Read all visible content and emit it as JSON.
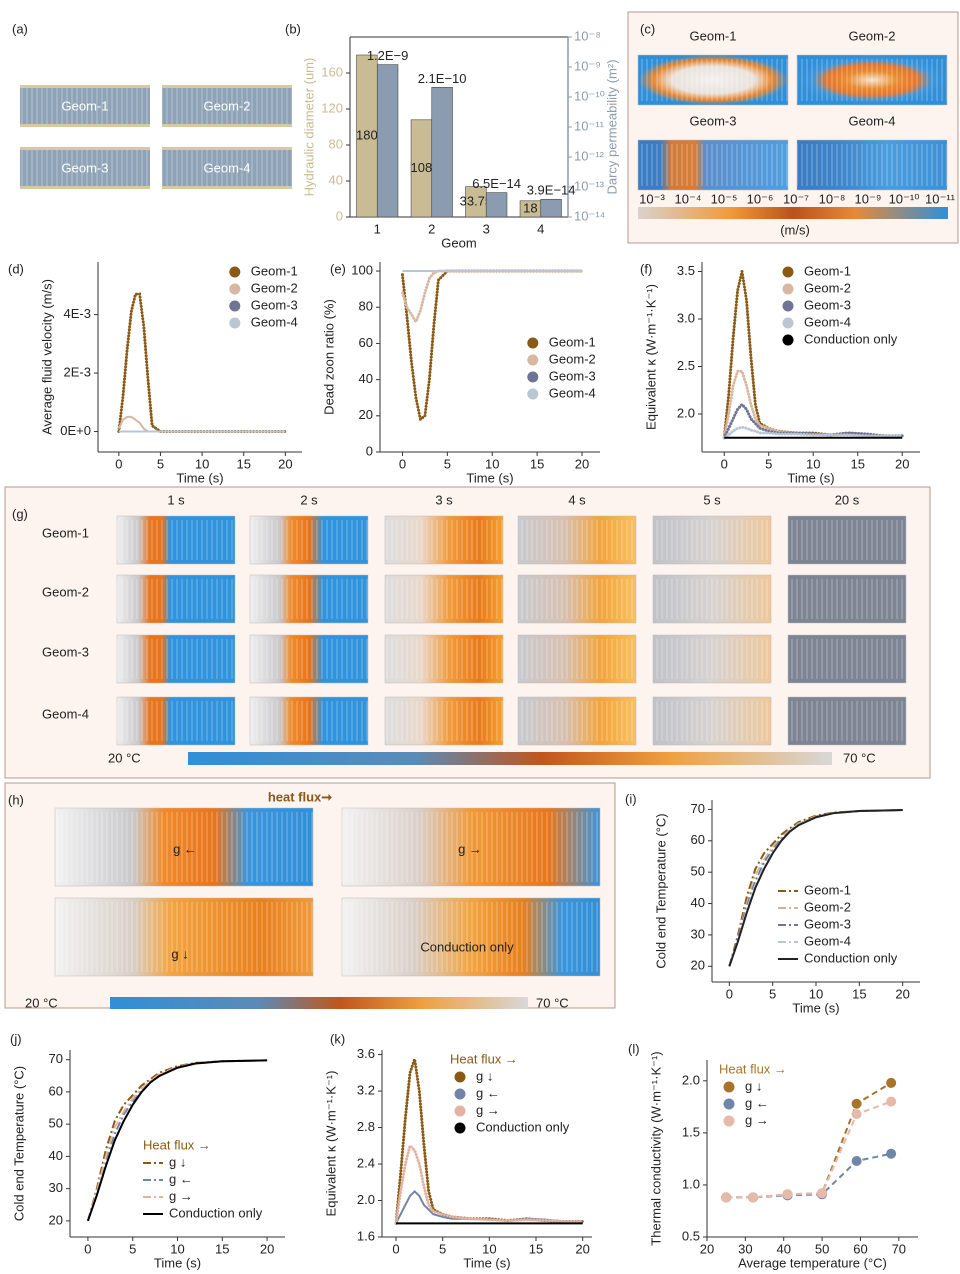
{
  "chart_data": [
    {
      "type": "bar",
      "label": "(b)",
      "categories": [
        "1",
        "2",
        "3",
        "4"
      ],
      "xlabel": "Geom",
      "ylabel": "Hydraulic diameter (um)",
      "y2label": "Darcy permeability (m²)",
      "ylim": [
        0,
        200
      ],
      "yticks": [
        0,
        40,
        80,
        120,
        160
      ],
      "y2lim": [
        1e-14,
        1e-08
      ],
      "y2log": true,
      "y2ticks": [
        {
          "value": 1e-14,
          "label": "10⁻¹⁴"
        },
        {
          "value": 1e-13,
          "label": "10⁻¹³"
        },
        {
          "value": 1e-12,
          "label": "10⁻¹²"
        },
        {
          "value": 1e-11,
          "label": "10⁻¹¹"
        },
        {
          "value": 1e-10,
          "label": "10⁻¹⁰"
        },
        {
          "value": 1e-09,
          "label": "10⁻⁹"
        },
        {
          "value": 1e-08,
          "label": "10⁻⁸"
        }
      ],
      "series": [
        {
          "name": "Hydraulic diameter",
          "color": "#c9bb94",
          "values": [
            180,
            108,
            33.75,
            18
          ]
        },
        {
          "name": "Darcy permeability",
          "color": "#8c9cb0",
          "axis": "y2",
          "values": [
            1.2e-09,
            2.1e-10,
            6.5e-14,
            3.9e-14
          ],
          "value_labels": [
            "1.2E−9",
            "2.1E−10",
            "6.5E−14",
            "3.9E−14"
          ]
        }
      ]
    },
    {
      "type": "line",
      "label": "(d)",
      "xlabel": "Time (s)",
      "ylabel": "Average fluid velocity (m/s)",
      "legend": "upper right",
      "legend_marker": "dot",
      "x": [
        0,
        0.5,
        1,
        1.5,
        2,
        2.5,
        3,
        3.5,
        4,
        5,
        6,
        8,
        10,
        12,
        14,
        16,
        18,
        20
      ],
      "xlim": [
        -2.5,
        22
      ],
      "xticks": [
        0,
        5,
        10,
        15,
        20
      ],
      "ylim": [
        -0.0007,
        0.0058
      ],
      "yticks": [
        {
          "value": 0,
          "label": "0E+0"
        },
        {
          "value": 0.002,
          "label": "2E-3"
        },
        {
          "value": 0.004,
          "label": "4E-3"
        }
      ],
      "series": [
        {
          "name": "Geom-1",
          "color": "#8a5a14",
          "style": "dotted",
          "values": [
            0,
            0.0012,
            0.0028,
            0.0041,
            0.0047,
            0.0047,
            0.0036,
            0.0018,
            0.0002,
            0,
            0,
            0,
            0,
            0,
            0,
            0,
            0,
            0
          ]
        },
        {
          "name": "Geom-2",
          "color": "#d8b8a2",
          "style": "solid",
          "values": [
            0.0001,
            0.0004,
            0.0005,
            0.0005,
            0.0004,
            0.0003,
            0.0001,
            0,
            0,
            0,
            0,
            0,
            0,
            0,
            0,
            0,
            0,
            0
          ]
        },
        {
          "name": "Geom-3",
          "color": "#6f7394",
          "style": "solid",
          "values": [
            0,
            0,
            0,
            0,
            0,
            0,
            0,
            0,
            0,
            0,
            0,
            0,
            0,
            0,
            0,
            0,
            0,
            0
          ]
        },
        {
          "name": "Geom-4",
          "color": "#b9c7d3",
          "style": "solid",
          "values": [
            0,
            0,
            0,
            0,
            0,
            0,
            0,
            0,
            0,
            0,
            0,
            0,
            0,
            0,
            0,
            0,
            0,
            0
          ]
        }
      ]
    },
    {
      "type": "line",
      "label": "(e)",
      "xlabel": "Time (s)",
      "ylabel": "Dead zoon ratio (%)",
      "legend": "center right",
      "legend_marker": "dot",
      "x": [
        0,
        0.5,
        1,
        1.5,
        2,
        2.5,
        3,
        3.5,
        4,
        5,
        6,
        8,
        10,
        12,
        14,
        16,
        18,
        20
      ],
      "xlim": [
        -2.5,
        22
      ],
      "xticks": [
        0,
        5,
        10,
        15,
        20
      ],
      "ylim": [
        0,
        105
      ],
      "yticks": [
        0,
        20,
        40,
        60,
        80,
        100
      ],
      "series": [
        {
          "name": "Geom-1",
          "color": "#8a5a14",
          "style": "dotted",
          "values": [
            98,
            75,
            50,
            30,
            18,
            20,
            40,
            70,
            95,
            100,
            100,
            100,
            100,
            100,
            100,
            100,
            100,
            100
          ]
        },
        {
          "name": "Geom-2",
          "color": "#d8b8a2",
          "style": "dotted",
          "values": [
            88,
            80,
            76,
            72,
            78,
            88,
            96,
            99,
            100,
            100,
            100,
            100,
            100,
            100,
            100,
            100,
            100,
            100
          ]
        },
        {
          "name": "Geom-3",
          "color": "#6f7394",
          "style": "solid",
          "values": [
            100,
            100,
            100,
            100,
            100,
            100,
            100,
            100,
            100,
            100,
            100,
            100,
            100,
            100,
            100,
            100,
            100,
            100
          ]
        },
        {
          "name": "Geom-4",
          "color": "#b9c7d3",
          "style": "solid",
          "values": [
            100,
            100,
            100,
            100,
            100,
            100,
            100,
            100,
            100,
            100,
            100,
            100,
            100,
            100,
            100,
            100,
            100,
            100
          ]
        }
      ]
    },
    {
      "type": "line",
      "label": "(f)",
      "xlabel": "Time (s)",
      "ylabel": "Equivalent κ (W·m⁻¹·K⁻¹)",
      "legend": "upper right",
      "legend_marker": "dot",
      "x": [
        0,
        0.5,
        1,
        1.5,
        2,
        2.5,
        3,
        3.5,
        4,
        5,
        6,
        8,
        10,
        12,
        14,
        16,
        18,
        20
      ],
      "xlim": [
        -2.5,
        22
      ],
      "xticks": [
        0,
        5,
        10,
        15,
        20
      ],
      "ylim": [
        1.6,
        3.6
      ],
      "yticks": [
        {
          "value": 2,
          "label": "2.0"
        },
        2.5,
        {
          "value": 3,
          "label": "3.0"
        },
        3.5
      ],
      "series": [
        {
          "name": "Geom-1",
          "color": "#8a5a14",
          "style": "dotted",
          "values": [
            1.75,
            2.2,
            2.8,
            3.3,
            3.5,
            3.2,
            2.6,
            2.1,
            1.9,
            1.85,
            1.82,
            1.8,
            1.8,
            1.78,
            1.8,
            1.78,
            1.77,
            1.77
          ]
        },
        {
          "name": "Geom-2",
          "color": "#d8b8a2",
          "style": "dotted",
          "values": [
            1.75,
            2.0,
            2.3,
            2.45,
            2.45,
            2.3,
            2.1,
            1.95,
            1.88,
            1.85,
            1.82,
            1.8,
            1.79,
            1.78,
            1.79,
            1.78,
            1.77,
            1.77
          ]
        },
        {
          "name": "Geom-3",
          "color": "#6f7394",
          "style": "dotted",
          "values": [
            1.75,
            1.85,
            1.95,
            2.05,
            2.1,
            2.05,
            1.95,
            1.9,
            1.85,
            1.82,
            1.8,
            1.8,
            1.79,
            1.78,
            1.8,
            1.79,
            1.77,
            1.77
          ]
        },
        {
          "name": "Geom-4",
          "color": "#b9c7d3",
          "style": "dotted",
          "values": [
            1.75,
            1.78,
            1.82,
            1.85,
            1.86,
            1.85,
            1.83,
            1.82,
            1.8,
            1.8,
            1.79,
            1.79,
            1.78,
            1.78,
            1.78,
            1.77,
            1.77,
            1.77
          ]
        },
        {
          "name": "Conduction only",
          "color": "#000000",
          "style": "solid",
          "values": [
            1.75,
            1.75,
            1.75,
            1.75,
            1.75,
            1.75,
            1.75,
            1.75,
            1.75,
            1.75,
            1.75,
            1.75,
            1.75,
            1.75,
            1.75,
            1.75,
            1.75,
            1.75
          ]
        }
      ]
    },
    {
      "type": "line",
      "label": "(i)",
      "xlabel": "Time (s)",
      "ylabel": "Cold end Temperature (°C)",
      "legend": "lower right",
      "legend_marker": "line",
      "x": [
        0,
        1,
        2,
        3,
        4,
        5,
        6,
        7,
        8,
        10,
        12,
        15,
        20
      ],
      "xlim": [
        -2,
        22
      ],
      "xticks": [
        0,
        5,
        10,
        15,
        20
      ],
      "ylim": [
        15,
        73
      ],
      "yticks": [
        20,
        30,
        40,
        50,
        60,
        70
      ],
      "series": [
        {
          "name": "Geom-1",
          "color": "#8a5a14",
          "style": "dashdot",
          "values": [
            20,
            30,
            42,
            51,
            56,
            59,
            62,
            64,
            66,
            68,
            69,
            69.5,
            69.8
          ]
        },
        {
          "name": "Geom-2",
          "color": "#c9b89a",
          "style": "dashdot",
          "values": [
            20,
            29,
            40,
            49,
            54,
            58,
            61,
            63.5,
            65.5,
            67.8,
            68.9,
            69.5,
            69.8
          ]
        },
        {
          "name": "Geom-3",
          "color": "#6f7394",
          "style": "dashdot",
          "values": [
            20,
            29,
            39,
            47,
            53,
            57,
            60.5,
            63,
            65,
            67.6,
            68.8,
            69.5,
            69.8
          ]
        },
        {
          "name": "Geom-4",
          "color": "#b9c7d3",
          "style": "dashdot",
          "values": [
            20,
            28,
            38,
            46,
            52,
            56.5,
            60,
            63,
            65,
            67.5,
            68.8,
            69.5,
            69.8
          ]
        },
        {
          "name": "Conduction only",
          "color": "#222222",
          "style": "solid",
          "values": [
            20,
            28,
            37,
            45,
            51,
            56,
            60,
            63,
            65,
            67.5,
            68.8,
            69.5,
            69.8
          ]
        }
      ]
    },
    {
      "type": "line",
      "label": "(j)",
      "xlabel": "Time (s)",
      "ylabel": "Cold end Temperature (°C)",
      "legend": "lower right",
      "legend_marker": "line",
      "legend_title": "Heat flux →",
      "x": [
        0,
        1,
        2,
        3,
        4,
        5,
        6,
        7,
        8,
        10,
        12,
        15,
        20
      ],
      "xlim": [
        -2,
        22
      ],
      "xticks": [
        0,
        5,
        10,
        15,
        20
      ],
      "ylim": [
        15,
        73
      ],
      "yticks": [
        20,
        30,
        40,
        50,
        60,
        70
      ],
      "series": [
        {
          "name": "g ↓",
          "color": "#8a5a14",
          "style": "dashdot",
          "values": [
            20,
            30,
            42,
            51,
            56,
            59,
            62,
            64,
            66,
            68,
            69,
            69.5,
            69.8
          ]
        },
        {
          "name": "g ←",
          "color": "#6f86a8",
          "style": "dashdot",
          "values": [
            20,
            29,
            39,
            47,
            53,
            57,
            60.5,
            63,
            65,
            67.6,
            68.8,
            69.5,
            69.8
          ]
        },
        {
          "name": "g →",
          "color": "#e2b3a3",
          "style": "dashdot",
          "values": [
            20,
            29,
            40,
            49,
            54,
            58,
            61,
            63.5,
            65.5,
            67.8,
            68.9,
            69.5,
            69.8
          ]
        },
        {
          "name": "Conduction only",
          "color": "#000000",
          "style": "solid",
          "values": [
            20,
            28,
            37,
            45,
            51,
            56,
            60,
            63,
            65,
            67.5,
            68.8,
            69.5,
            69.8
          ]
        }
      ]
    },
    {
      "type": "line",
      "label": "(k)",
      "xlabel": "Time (s)",
      "ylabel": "Equivalent κ (W·m⁻¹·K⁻¹)",
      "legend": "upper right",
      "legend_marker": "dot",
      "legend_title": "Heat flux →",
      "x": [
        0,
        0.5,
        1,
        1.5,
        2,
        2.5,
        3,
        3.5,
        4,
        5,
        6,
        8,
        10,
        12,
        14,
        16,
        18,
        20
      ],
      "xlim": [
        -1.5,
        21
      ],
      "xticks": [
        0,
        5,
        10,
        15,
        20
      ],
      "ylim": [
        1.6,
        3.65
      ],
      "yticks": [
        1.6,
        {
          "value": 2,
          "label": "2.0"
        },
        2.4,
        2.8,
        3.2,
        3.6
      ],
      "series": [
        {
          "name": "g ↓",
          "color": "#8a5a14",
          "style": "dotted",
          "values": [
            1.75,
            2.3,
            2.9,
            3.4,
            3.55,
            3.2,
            2.6,
            2.1,
            1.9,
            1.85,
            1.82,
            1.8,
            1.8,
            1.78,
            1.8,
            1.78,
            1.77,
            1.77
          ]
        },
        {
          "name": "g ←",
          "color": "#6f86a8",
          "style": "solid",
          "values": [
            1.75,
            1.85,
            1.95,
            2.05,
            2.1,
            2.05,
            1.95,
            1.9,
            1.85,
            1.82,
            1.8,
            1.8,
            1.79,
            1.78,
            1.8,
            1.79,
            1.77,
            1.77
          ]
        },
        {
          "name": "g →",
          "color": "#e2b3a3",
          "style": "dotted",
          "values": [
            1.75,
            2.1,
            2.4,
            2.6,
            2.55,
            2.4,
            2.15,
            1.95,
            1.88,
            1.85,
            1.82,
            1.8,
            1.79,
            1.78,
            1.79,
            1.78,
            1.77,
            1.77
          ]
        },
        {
          "name": "Conduction only",
          "color": "#000000",
          "style": "solid",
          "values": [
            1.75,
            1.75,
            1.75,
            1.75,
            1.75,
            1.75,
            1.75,
            1.75,
            1.75,
            1.75,
            1.75,
            1.75,
            1.75,
            1.75,
            1.75,
            1.75,
            1.75,
            1.75
          ]
        }
      ]
    },
    {
      "type": "line",
      "label": "(l)",
      "xlabel": "Average temperature (°C)",
      "ylabel": "Thermal conductivity (W·m⁻¹·K⁻¹)",
      "legend": "upper left",
      "legend_marker": "dot",
      "legend_title": "Heat flux →",
      "markers": true,
      "x": [
        25,
        32,
        41,
        50,
        59,
        68
      ],
      "xlim": [
        20,
        75
      ],
      "xticks": [
        20,
        30,
        40,
        50,
        60,
        70
      ],
      "ylim": [
        0.5,
        2.2
      ],
      "yticks": [
        0.5,
        {
          "value": 1,
          "label": "1.0"
        },
        1.5,
        {
          "value": 2,
          "label": "2.0"
        }
      ],
      "series": [
        {
          "name": "g ↓",
          "color": "#a8742a",
          "style": "dashed",
          "values": [
            0.88,
            0.88,
            0.91,
            0.92,
            1.78,
            1.98
          ]
        },
        {
          "name": "g ←",
          "color": "#6f86a8",
          "style": "dashed",
          "values": [
            0.88,
            0.88,
            0.9,
            0.91,
            1.23,
            1.3
          ]
        },
        {
          "name": "g →",
          "color": "#e6b9a8",
          "style": "dashed",
          "values": [
            0.88,
            0.88,
            0.91,
            0.92,
            1.68,
            1.8
          ]
        }
      ]
    }
  ],
  "panel_a": {
    "label": "(a)",
    "tiles": [
      "Geom-1",
      "Geom-2",
      "Geom-3",
      "Geom-4"
    ]
  },
  "panel_c": {
    "label": "(c)",
    "titles": [
      "Geom-1",
      "Geom-2",
      "Geom-3",
      "Geom-4"
    ],
    "colorbar_ticks": [
      "10⁻³",
      "10⁻⁴",
      "10⁻⁵",
      "10⁻⁶",
      "10⁻⁷",
      "10⁻⁸",
      "10⁻⁹",
      "10⁻¹⁰",
      "10⁻¹¹"
    ],
    "unit": "(m/s)"
  },
  "panel_g": {
    "label": "(g)",
    "columns": [
      "1 s",
      "2 s",
      "3 s",
      "4 s",
      "5 s",
      "20 s"
    ],
    "rows": [
      "Geom-1",
      "Geom-2",
      "Geom-3",
      "Geom-4"
    ],
    "colorbar_min": "20 °C",
    "colorbar_max": "70 °C"
  },
  "panel_h": {
    "label": "(h)",
    "heat_flux": "heat flux➞",
    "panels": [
      "g ←",
      "g →",
      "g ↓",
      "Conduction only"
    ],
    "colorbar_min": "20 °C",
    "colorbar_max": "70 °C"
  }
}
